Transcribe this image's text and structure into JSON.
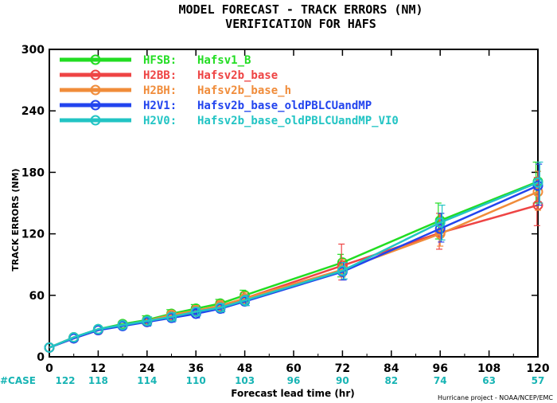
{
  "title": "MODEL FORECAST - TRACK ERRORS (NM)",
  "subtitle": "VERIFICATION FOR HAFS",
  "credit": "Hurricane project - NOAA/NCEP/EMC",
  "case_color": "#17b4b4",
  "chart_data": {
    "type": "line",
    "xlabel": "Forecast lead time (hr)",
    "ylabel": "TRACK ERRORS (NM)",
    "xlim": [
      0,
      120
    ],
    "ylim": [
      0,
      300
    ],
    "x_ticks": [
      0,
      12,
      24,
      36,
      48,
      60,
      72,
      84,
      96,
      108,
      120
    ],
    "y_ticks": [
      0,
      60,
      120,
      180,
      240,
      300
    ],
    "x_tick_labels": [
      "0",
      "12",
      "24",
      "36",
      "48",
      "60",
      "72",
      "84",
      "96",
      "108",
      "120"
    ],
    "y_tick_labels": [
      "0",
      "60",
      "120",
      "180",
      "240",
      "300"
    ],
    "grid": false,
    "legend_position": "top-left",
    "x": [
      0,
      6,
      12,
      18,
      24,
      30,
      36,
      42,
      48,
      72,
      96,
      120
    ],
    "case_label": "#CASE",
    "case_hours": [
      0,
      12,
      24,
      36,
      48,
      60,
      72,
      84,
      96,
      108,
      120
    ],
    "case_counts": [
      "122",
      "118",
      "114",
      "110",
      "103",
      "96",
      "90",
      "82",
      "74",
      "63",
      "57"
    ],
    "series": [
      {
        "code": "HFSB:",
        "name": "Hafsv1_B",
        "color": "#22dd22",
        "values": [
          9,
          19,
          27,
          32,
          36,
          42,
          47,
          52,
          60,
          92,
          133,
          171
        ],
        "err_lo": [
          null,
          null,
          null,
          null,
          32,
          38,
          43,
          48,
          55,
          78,
          115,
          150
        ],
        "err_hi": [
          null,
          null,
          null,
          null,
          40,
          46,
          51,
          56,
          65,
          100,
          150,
          190
        ]
      },
      {
        "code": "H2BB:",
        "name": "Hafsv2b_base",
        "color": "#ee4444",
        "values": [
          9,
          18,
          26,
          31,
          34,
          40,
          44,
          49,
          57,
          89,
          121,
          148
        ],
        "err_lo": [
          null,
          null,
          null,
          null,
          31,
          36,
          40,
          45,
          52,
          75,
          105,
          128
        ],
        "err_hi": [
          null,
          null,
          null,
          null,
          38,
          44,
          49,
          54,
          63,
          110,
          140,
          175
        ]
      },
      {
        "code": "H2BH:",
        "name": "Hafsv2b_base_h",
        "color": "#f08c3a",
        "values": [
          9,
          19,
          26,
          31,
          35,
          41,
          45,
          50,
          57,
          85,
          120,
          161
        ],
        "err_lo": [
          null,
          null,
          null,
          null,
          31,
          37,
          41,
          46,
          52,
          78,
          108,
          143
        ],
        "err_hi": [
          null,
          null,
          null,
          null,
          39,
          45,
          50,
          55,
          63,
          95,
          140,
          181
        ]
      },
      {
        "code": "H2V1:",
        "name": "Hafsv2b_base_oldPBLCUandMP",
        "color": "#2244ee",
        "values": [
          9,
          18,
          26,
          30,
          34,
          38,
          42,
          47,
          54,
          83,
          125,
          167
        ],
        "err_lo": [
          null,
          null,
          null,
          null,
          30,
          34,
          38,
          43,
          50,
          75,
          112,
          148
        ],
        "err_hi": [
          null,
          null,
          null,
          null,
          38,
          42,
          47,
          51,
          59,
          92,
          140,
          188
        ]
      },
      {
        "code": "H2V0:",
        "name": "Hafsv2b_base_oldPBLCUandMP_VI0",
        "color": "#22c4c4",
        "values": [
          9,
          19,
          27,
          31,
          35,
          39,
          44,
          48,
          55,
          84,
          131,
          170
        ],
        "err_lo": [
          null,
          null,
          null,
          null,
          31,
          35,
          40,
          44,
          50,
          76,
          114,
          150
        ],
        "err_hi": [
          null,
          null,
          null,
          null,
          39,
          43,
          48,
          52,
          60,
          92,
          148,
          190
        ]
      }
    ]
  }
}
